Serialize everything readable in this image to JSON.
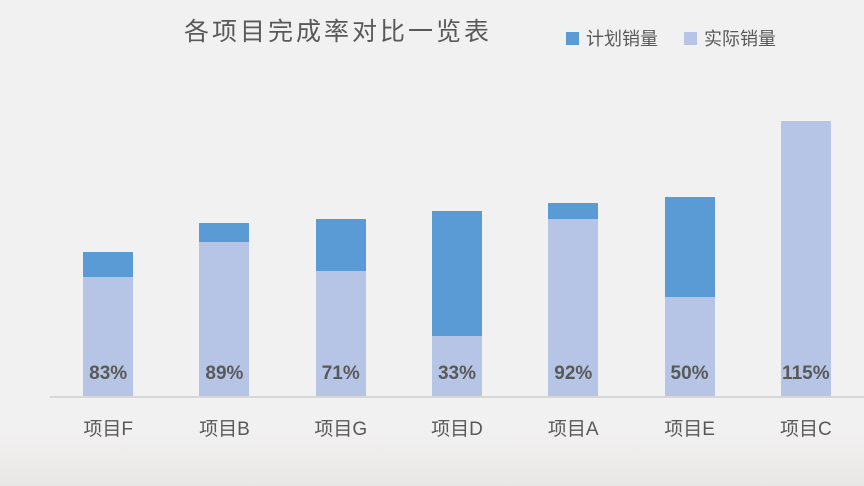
{
  "canvas": {
    "background_color": "#f2f1f1",
    "bottom_vignette_color": "#e9e7e6"
  },
  "chart_data": {
    "type": "bar",
    "subtype": "overlap-stacked",
    "title": "各项目完成率对比一览表",
    "title_color": "#595959",
    "categories": [
      "项目F",
      "项目B",
      "项目G",
      "项目D",
      "项目A",
      "项目E",
      "项目C"
    ],
    "series": [
      {
        "name": "计划销量",
        "color": "#5b9bd5",
        "values": [
          145,
          174,
          178,
          186,
          194,
          200,
          240
        ]
      },
      {
        "name": "实际销量",
        "color": "#b6c5e6",
        "values": [
          120,
          155,
          126,
          61,
          178,
          100,
          276
        ]
      }
    ],
    "data_labels": {
      "text": [
        "83%",
        "89%",
        "71%",
        "33%",
        "92%",
        "50%",
        "115%"
      ],
      "color": "#595959",
      "position": "inside-bottom"
    },
    "legend_position": "top-right",
    "gridlines": false,
    "value_axis_visible": false,
    "category_axis": {
      "line_color": "#d9d6d6",
      "label_color": "#595959"
    }
  }
}
